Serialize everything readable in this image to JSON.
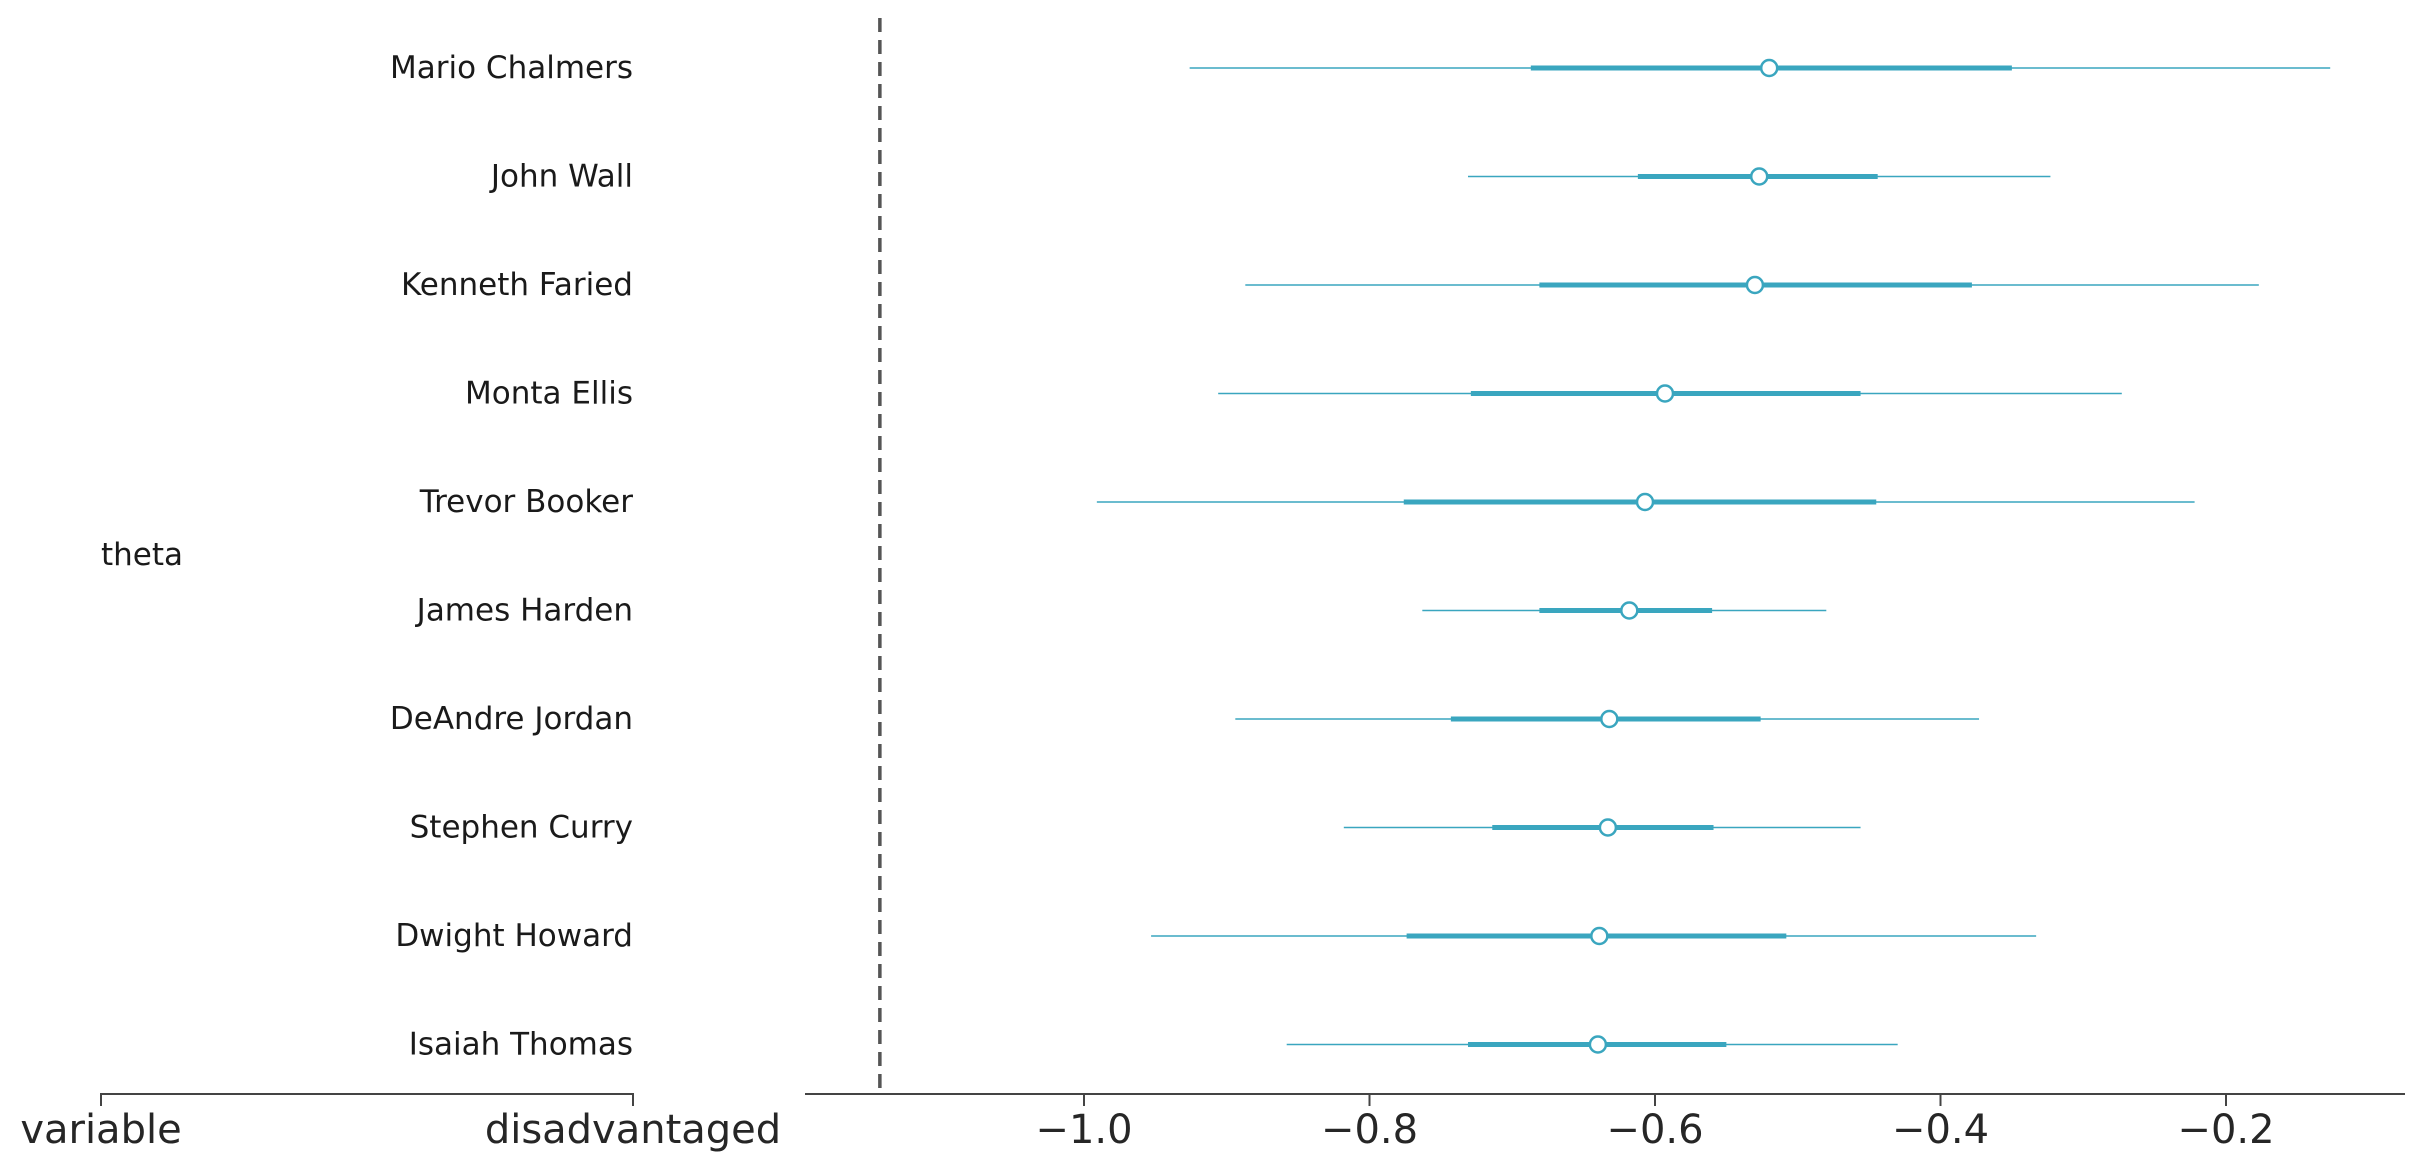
{
  "chart_data": {
    "type": "forest",
    "group_label": "theta",
    "column_labels": [
      "variable",
      "disadvantaged"
    ],
    "colors": {
      "interval": "#3aa6bf",
      "axis": "#444444",
      "reference_line": "#555555"
    },
    "reference_line_x": -1.143,
    "xlim": [
      -1.3,
      -0.12
    ],
    "xticks": [
      -1.0,
      -0.8,
      -0.6,
      -0.4,
      -0.2
    ],
    "xtick_labels": [
      "−1.0",
      "−0.8",
      "−0.6",
      "−0.4",
      "−0.2"
    ],
    "rows": [
      {
        "label": "Mario Chalmers",
        "lo": -0.926,
        "q1": -0.687,
        "median": -0.52,
        "q3": -0.35,
        "hi": -0.127
      },
      {
        "label": "John Wall",
        "lo": -0.731,
        "q1": -0.612,
        "median": -0.527,
        "q3": -0.444,
        "hi": -0.323
      },
      {
        "label": "Kenneth Faried",
        "lo": -0.887,
        "q1": -0.681,
        "median": -0.53,
        "q3": -0.378,
        "hi": -0.177
      },
      {
        "label": "Monta Ellis",
        "lo": -0.906,
        "q1": -0.729,
        "median": -0.593,
        "q3": -0.456,
        "hi": -0.273
      },
      {
        "label": "Trevor Booker",
        "lo": -0.991,
        "q1": -0.776,
        "median": -0.607,
        "q3": -0.445,
        "hi": -0.222
      },
      {
        "label": "James Harden",
        "lo": -0.763,
        "q1": -0.681,
        "median": -0.618,
        "q3": -0.56,
        "hi": -0.48
      },
      {
        "label": "DeAndre Jordan",
        "lo": -0.894,
        "q1": -0.743,
        "median": -0.632,
        "q3": -0.526,
        "hi": -0.373
      },
      {
        "label": "Stephen Curry",
        "lo": -0.818,
        "q1": -0.714,
        "median": -0.633,
        "q3": -0.559,
        "hi": -0.456
      },
      {
        "label": "Dwight Howard",
        "lo": -0.953,
        "q1": -0.774,
        "median": -0.639,
        "q3": -0.508,
        "hi": -0.333
      },
      {
        "label": "Isaiah Thomas",
        "lo": -0.858,
        "q1": -0.731,
        "median": -0.64,
        "q3": -0.55,
        "hi": -0.43
      }
    ]
  }
}
